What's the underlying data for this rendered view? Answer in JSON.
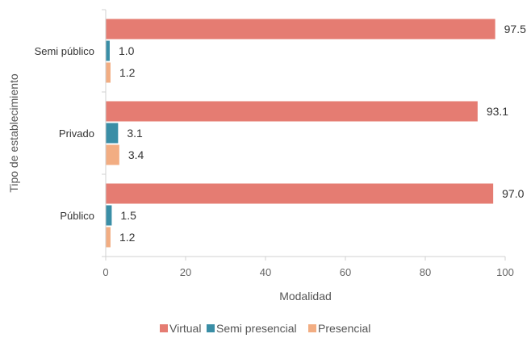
{
  "chart_data": {
    "type": "bar",
    "orientation": "horizontal",
    "title": "",
    "xlabel": "Modalidad",
    "ylabel": "Tipo de establecimiento",
    "categories": [
      "Semi público",
      "Privado",
      "Público"
    ],
    "series": [
      {
        "name": "Virtual",
        "color": "#e57c72",
        "values": [
          97.5,
          93.1,
          97.0
        ]
      },
      {
        "name": "Semi presencial",
        "color": "#3a8ea6",
        "values": [
          1.0,
          3.1,
          1.5
        ]
      },
      {
        "name": "Presencial",
        "color": "#f2ad82",
        "values": [
          1.2,
          3.4,
          1.2
        ]
      }
    ],
    "xlim": [
      0,
      100
    ],
    "xticks": [
      0,
      20,
      40,
      60,
      80,
      100
    ],
    "xtick_labels": [
      "0",
      "20",
      "40",
      "60",
      "80",
      "100"
    ],
    "value_labels": [
      [
        "97.5",
        "93.1",
        "97.0"
      ],
      [
        "1.0",
        "3.1",
        "1.5"
      ],
      [
        "1.2",
        "3.4",
        "1.2"
      ]
    ],
    "grid": false,
    "legend_position": "bottom"
  }
}
